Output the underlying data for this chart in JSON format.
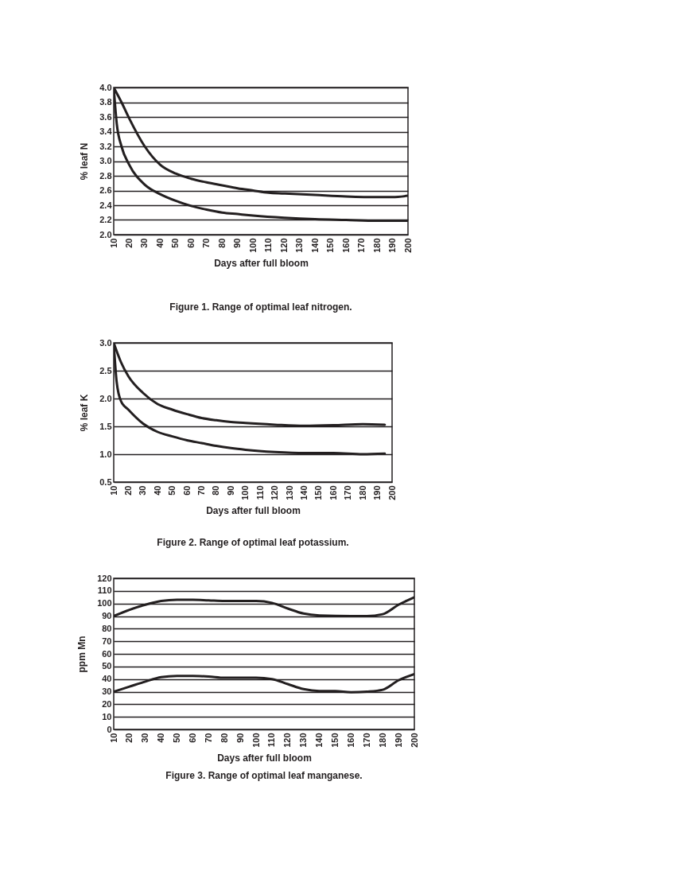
{
  "chart_data": [
    {
      "type": "line",
      "title": "Figure 1.  Range of optimal leaf nitrogen.",
      "xlabel": "Days after full bloom",
      "ylabel": "% leaf N",
      "xlim": [
        10,
        200
      ],
      "ylim": [
        2.0,
        4.0
      ],
      "xticks": [
        10,
        20,
        30,
        40,
        50,
        60,
        70,
        80,
        90,
        100,
        110,
        120,
        130,
        140,
        150,
        160,
        170,
        180,
        190,
        200
      ],
      "yticks": [
        {
          "value": 2,
          "label": "2.0"
        },
        2.2,
        2.4,
        2.6,
        2.8,
        {
          "value": 3,
          "label": "3.0"
        },
        3.2,
        3.4,
        3.6,
        3.8,
        {
          "value": 4,
          "label": "4.0"
        }
      ],
      "grid": "y",
      "series": [
        {
          "color": "#231f20",
          "x": [
            10,
            15,
            20,
            30,
            40,
            50,
            60,
            70,
            80,
            90,
            100,
            110,
            120,
            140,
            160,
            180,
            190,
            200
          ],
          "values": [
            4.0,
            3.8,
            3.58,
            3.2,
            2.95,
            2.83,
            2.76,
            2.71,
            2.67,
            2.63,
            2.6,
            2.57,
            2.56,
            2.54,
            2.52,
            2.51,
            2.51,
            2.53
          ]
        },
        {
          "color": "#231f20",
          "x": [
            10,
            12,
            15,
            20,
            30,
            40,
            50,
            60,
            70,
            80,
            90,
            100,
            120,
            140,
            160,
            180,
            200
          ],
          "values": [
            4.0,
            3.5,
            3.2,
            2.95,
            2.68,
            2.55,
            2.46,
            2.39,
            2.34,
            2.3,
            2.28,
            2.26,
            2.23,
            2.21,
            2.2,
            2.19,
            2.19
          ]
        }
      ]
    },
    {
      "type": "line",
      "title": "Figure 2.  Range of optimal leaf potassium.",
      "xlabel": "Days after full bloom",
      "ylabel": "% leaf K",
      "xlim": [
        10,
        200
      ],
      "ylim": [
        0.5,
        3.0
      ],
      "xticks": [
        10,
        20,
        30,
        40,
        50,
        60,
        70,
        80,
        90,
        100,
        110,
        120,
        130,
        140,
        150,
        160,
        170,
        180,
        190,
        200
      ],
      "yticks": [
        0.5,
        {
          "value": 1,
          "label": "1.0"
        },
        1.5,
        {
          "value": 2,
          "label": "2.0"
        },
        2.5,
        {
          "value": 3,
          "label": "3.0"
        }
      ],
      "grid": "y",
      "series": [
        {
          "color": "#231f20",
          "x": [
            10,
            15,
            20,
            30,
            40,
            50,
            60,
            70,
            80,
            90,
            100,
            120,
            140,
            160,
            180,
            195
          ],
          "values": [
            3.0,
            2.65,
            2.4,
            2.1,
            1.9,
            1.8,
            1.72,
            1.65,
            1.61,
            1.58,
            1.56,
            1.53,
            1.51,
            1.52,
            1.54,
            1.53
          ]
        },
        {
          "color": "#231f20",
          "x": [
            10,
            12,
            15,
            20,
            30,
            40,
            50,
            60,
            70,
            80,
            90,
            100,
            120,
            140,
            160,
            180,
            195
          ],
          "values": [
            3.0,
            2.3,
            1.95,
            1.8,
            1.55,
            1.4,
            1.32,
            1.25,
            1.2,
            1.15,
            1.11,
            1.08,
            1.04,
            1.02,
            1.02,
            1.0,
            1.01
          ]
        }
      ]
    },
    {
      "type": "line",
      "title": "Figure 3.  Range of optimal leaf manganese.",
      "xlabel": "Days after full bloom",
      "ylabel": "ppm Mn",
      "xlim": [
        10,
        200
      ],
      "ylim": [
        0,
        120
      ],
      "xticks": [
        10,
        20,
        30,
        40,
        50,
        60,
        70,
        80,
        90,
        100,
        110,
        120,
        130,
        140,
        150,
        160,
        170,
        180,
        190,
        200
      ],
      "yticks": [
        0,
        10,
        20,
        30,
        40,
        50,
        60,
        70,
        80,
        90,
        100,
        110,
        120
      ],
      "grid": "y",
      "series": [
        {
          "color": "#231f20",
          "x": [
            10,
            20,
            30,
            40,
            50,
            60,
            70,
            80,
            90,
            100,
            110,
            120,
            130,
            140,
            160,
            170,
            180,
            190,
            200
          ],
          "values": [
            90,
            95,
            99,
            102,
            103,
            103,
            102.5,
            102,
            102,
            102,
            100.5,
            96,
            92,
            90.5,
            90,
            90,
            91.5,
            99,
            105
          ]
        },
        {
          "color": "#231f20",
          "x": [
            10,
            20,
            30,
            40,
            50,
            60,
            70,
            80,
            90,
            100,
            110,
            120,
            130,
            140,
            150,
            160,
            170,
            180,
            190,
            200
          ],
          "values": [
            30,
            34,
            38,
            41.5,
            42.5,
            42.5,
            42,
            41,
            41,
            41,
            40,
            36,
            32,
            30.5,
            30.5,
            29.5,
            30,
            31.5,
            39,
            44
          ]
        }
      ]
    }
  ]
}
